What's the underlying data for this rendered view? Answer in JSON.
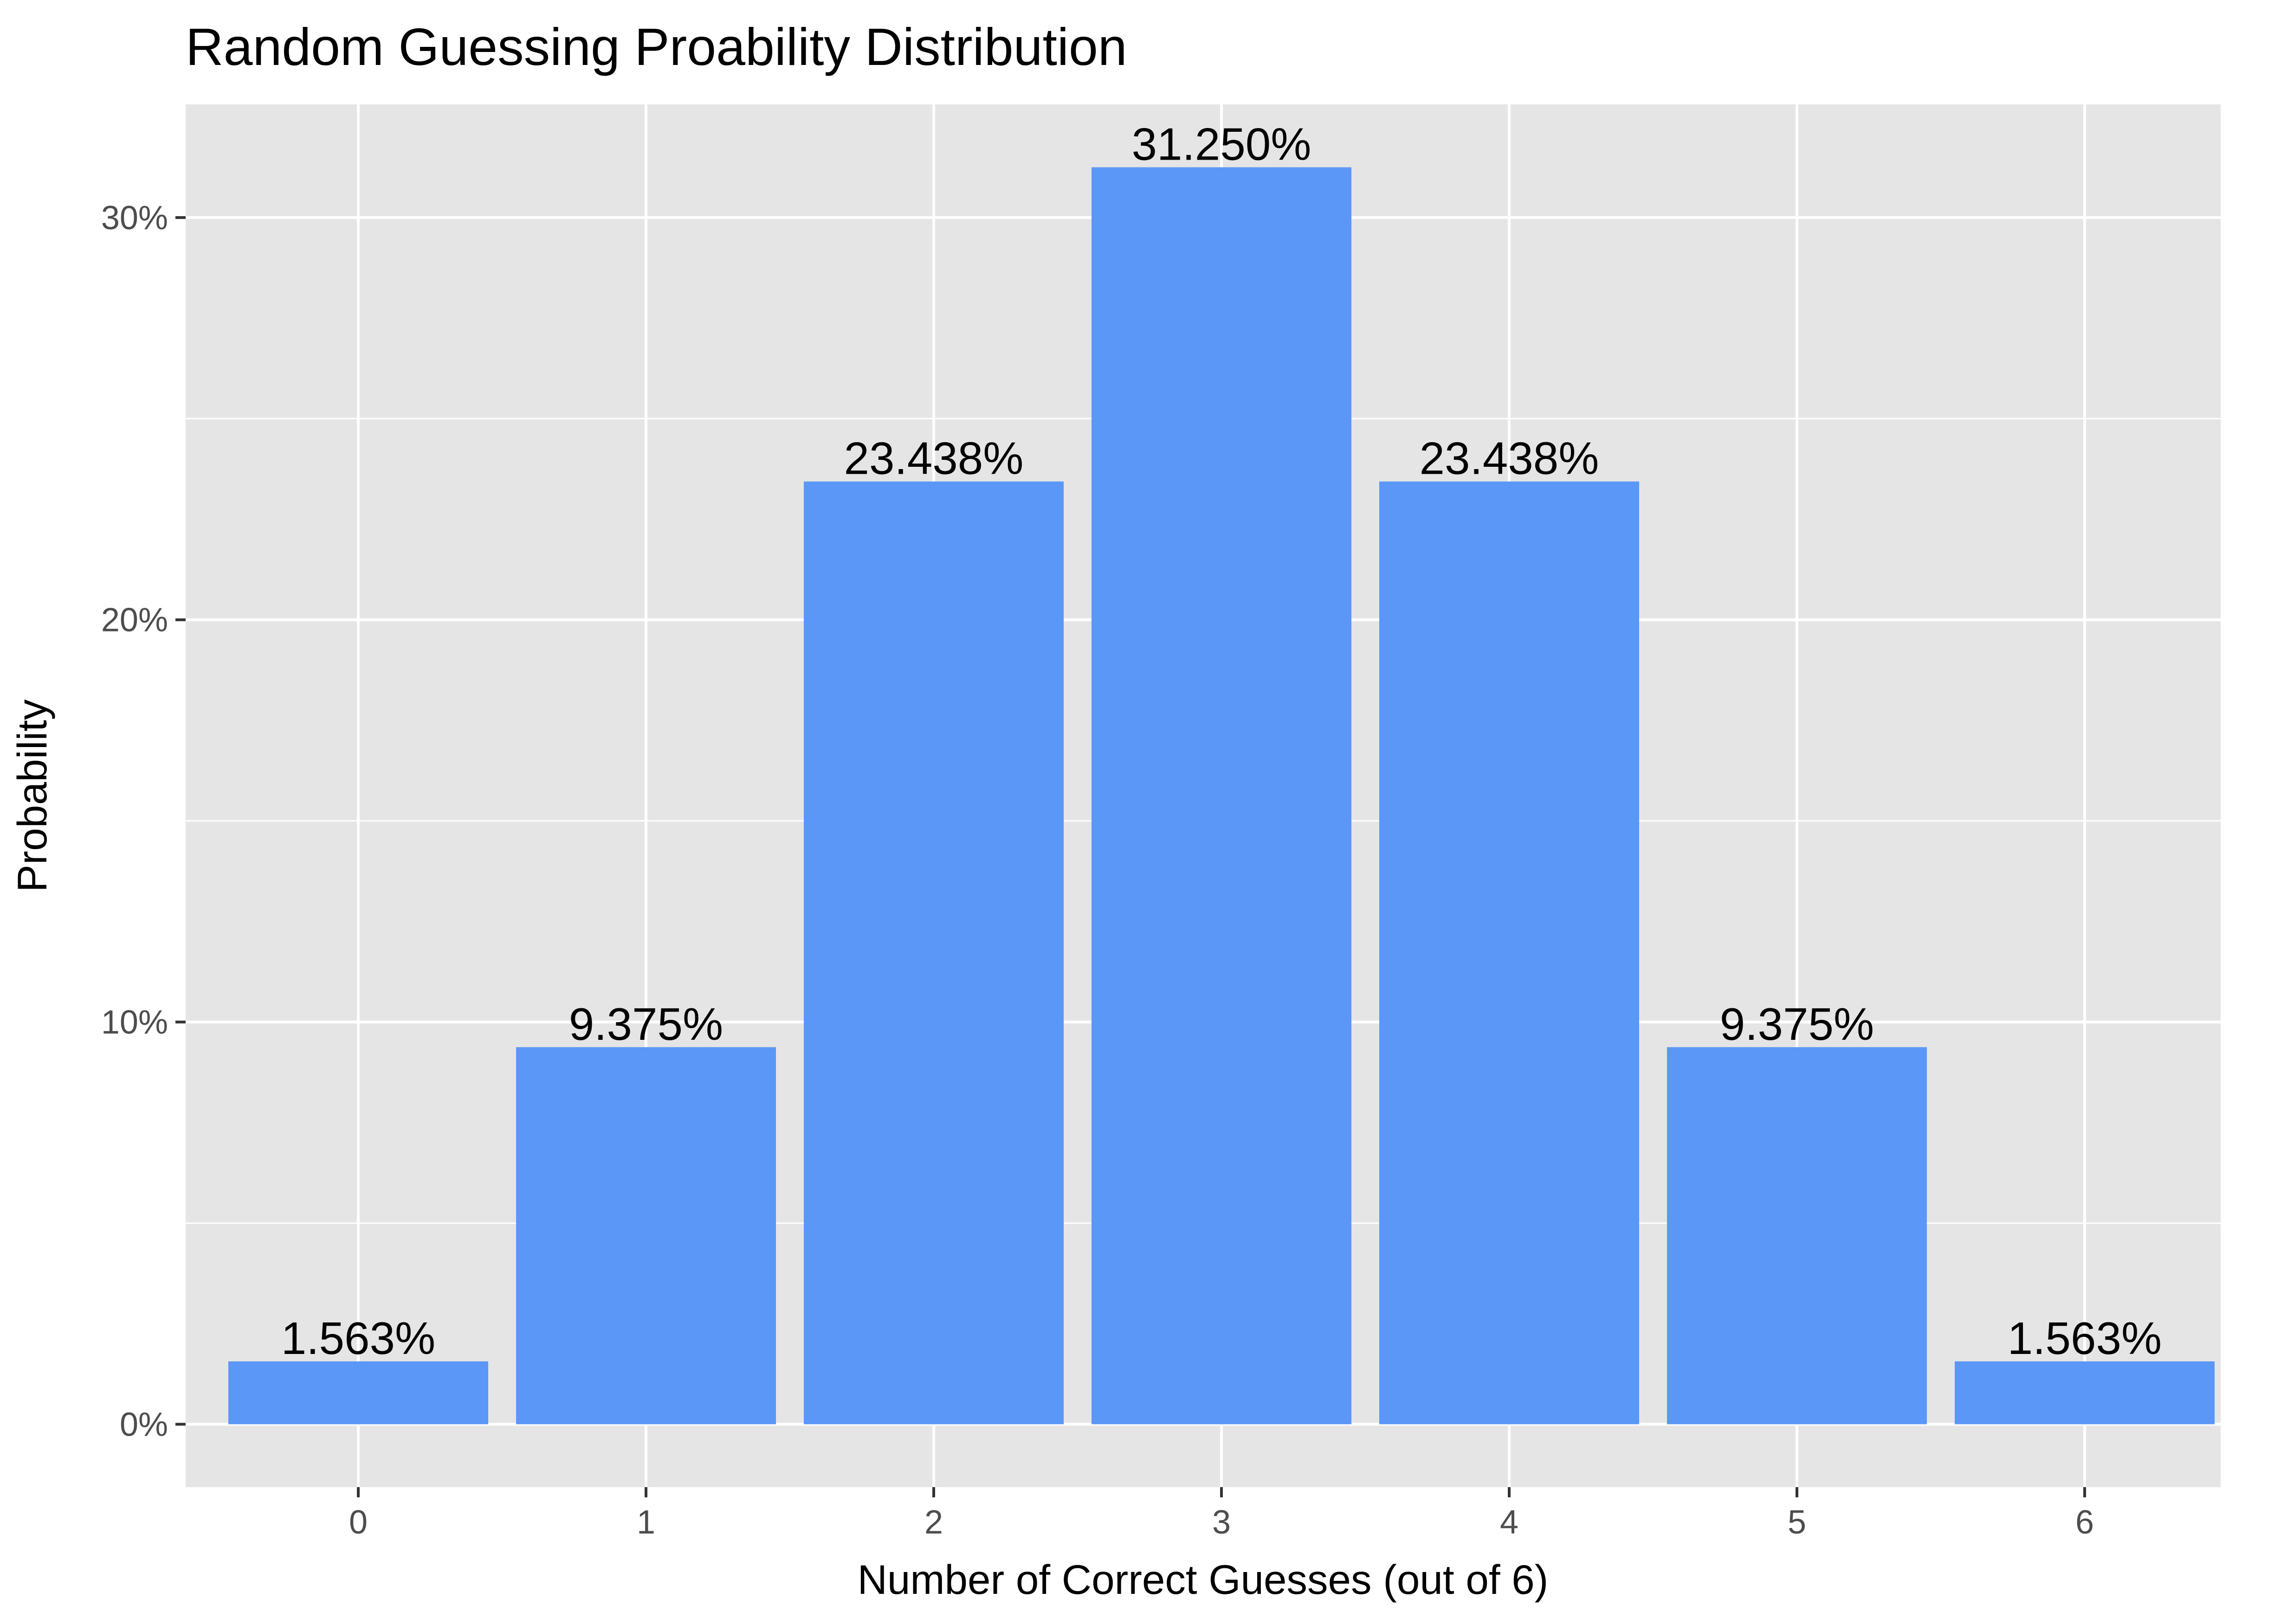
{
  "chart_data": {
    "type": "bar",
    "title": "Random Guessing Proability Distribution",
    "xlabel": "Number of Correct Guesses (out of 6)",
    "ylabel": "Probability",
    "categories": [
      "0",
      "1",
      "2",
      "3",
      "4",
      "5",
      "6"
    ],
    "values": [
      1.563,
      9.375,
      23.438,
      31.25,
      23.438,
      9.375,
      1.563
    ],
    "value_labels": [
      "1.563%",
      "9.375%",
      "23.438%",
      "31.250%",
      "23.438%",
      "9.375%",
      "1.563%"
    ],
    "value_unit": "percent",
    "ylim": [
      -1.563,
      32.813
    ],
    "yticks": [
      0,
      10,
      20,
      30
    ],
    "ytick_labels": [
      "0%",
      "10%",
      "20%",
      "30%"
    ],
    "grid": true,
    "legend": "none",
    "colors": {
      "bar": "#5B97F6",
      "panel": "#E5E5E5",
      "grid": "#FFFFFF"
    }
  }
}
